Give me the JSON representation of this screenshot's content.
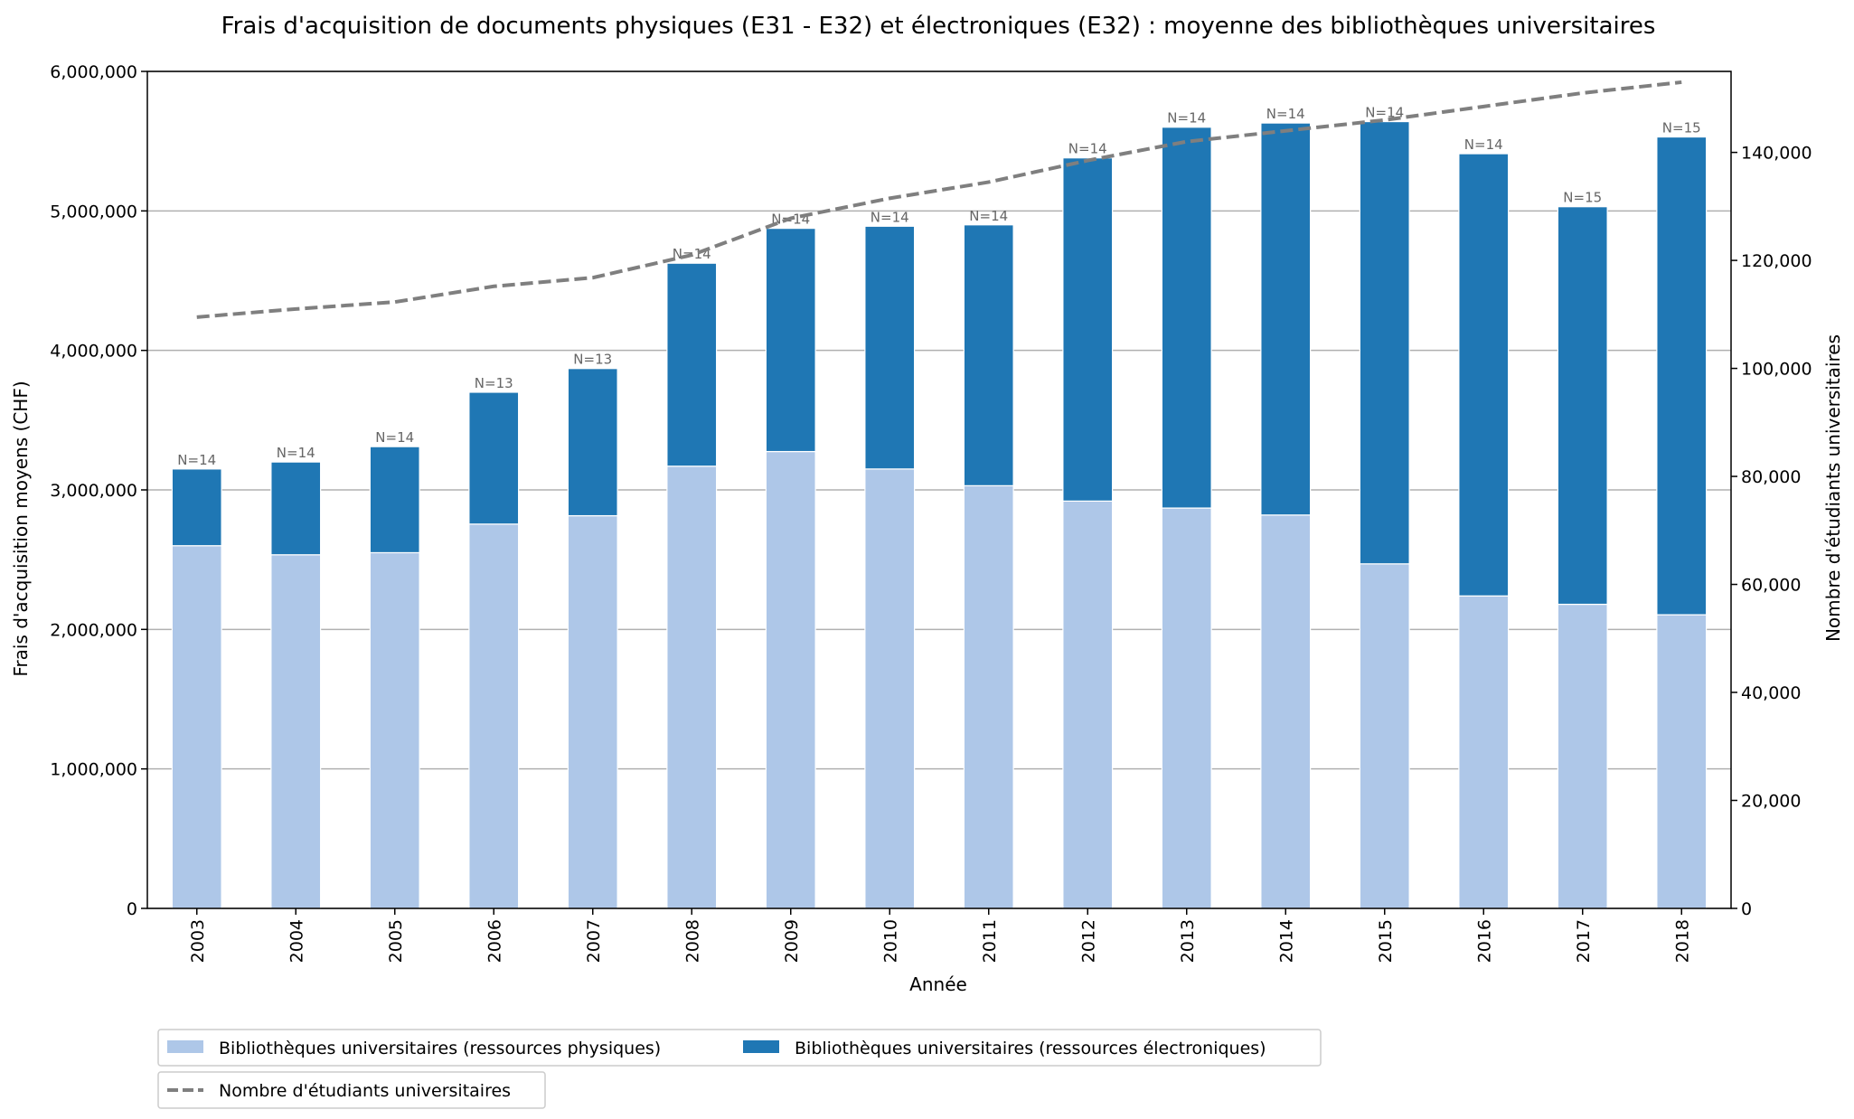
{
  "chart_data": {
    "type": "bar",
    "stacked": true,
    "title": "Frais d'acquisition de documents physiques (E31 - E32) et électroniques (E32) : moyenne des bibliothèques universitaires",
    "xlabel": "Année",
    "ylabel": "Frais d'acquisition moyens (CHF)",
    "y2label": "Nombre d'étudiants universitaires",
    "categories": [
      "2003",
      "2004",
      "2005",
      "2006",
      "2007",
      "2008",
      "2009",
      "2010",
      "2011",
      "2012",
      "2013",
      "2014",
      "2015",
      "2016",
      "2017",
      "2018"
    ],
    "ylim": [
      0,
      6000000
    ],
    "y2lim": [
      0,
      155000
    ],
    "yticks": [
      0,
      1000000,
      2000000,
      3000000,
      4000000,
      5000000,
      6000000
    ],
    "y2ticks": [
      0,
      20000,
      40000,
      60000,
      80000,
      100000,
      120000,
      140000
    ],
    "ytick_labels": [
      "0",
      "1,000,000",
      "2,000,000",
      "3,000,000",
      "4,000,000",
      "5,000,000",
      "6,000,000"
    ],
    "y2tick_labels": [
      "0",
      "20,000",
      "40,000",
      "60,000",
      "80,000",
      "100,000",
      "120,000",
      "140,000"
    ],
    "grid": "horizontal",
    "series": [
      {
        "name": "Bibliothèques universitaires (ressources physiques)",
        "color": "#aec7e8",
        "values": [
          2600000,
          2535000,
          2550000,
          2755000,
          2815000,
          3170000,
          3275000,
          3150000,
          3030000,
          2920000,
          2870000,
          2820000,
          2470000,
          2240000,
          2180000,
          2105000
        ]
      },
      {
        "name": "Bibliothèques universitaires (ressources électroniques)",
        "color": "#1f77b4",
        "values": [
          550000,
          665000,
          760000,
          945000,
          1055000,
          1455000,
          1600000,
          1740000,
          1870000,
          2460000,
          2730000,
          2810000,
          3170000,
          3170000,
          2850000,
          3425000
        ]
      }
    ],
    "line_series": {
      "name": "Nombre d'étudiants universitaires",
      "color": "#7f7f7f",
      "axis": "right",
      "style": "dashed",
      "values": [
        109500,
        111000,
        112300,
        115200,
        116800,
        121000,
        127800,
        131500,
        134500,
        138500,
        142000,
        144000,
        146000,
        148500,
        151000,
        153000
      ]
    },
    "bar_annotations": [
      "N=14",
      "N=14",
      "N=14",
      "N=13",
      "N=13",
      "N=14",
      "N=14",
      "N=14",
      "N=14",
      "N=14",
      "N=14",
      "N=14",
      "N=14",
      "N=14",
      "N=15",
      "N=15"
    ],
    "legend": "bottom-left"
  }
}
